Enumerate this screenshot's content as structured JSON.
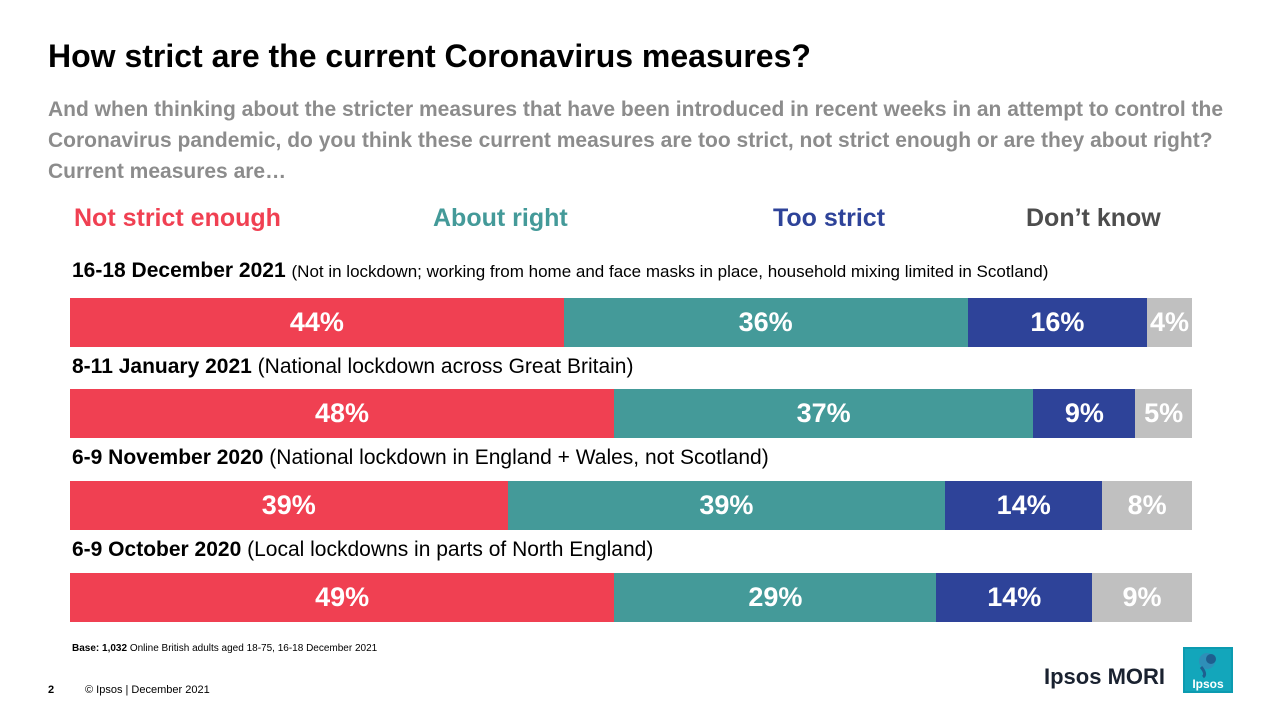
{
  "header": {
    "title": "How strict are the current Coronavirus measures?",
    "subtitle": "And when thinking about the stricter measures that have been introduced in recent weeks in an attempt to control the Coronavirus pandemic, do you think these current measures are too strict, not strict enough or are they about right? Current measures are…"
  },
  "colors": {
    "not_strict_enough": "#f04052",
    "about_right": "#449a99",
    "too_strict": "#2e4399",
    "dont_know": "#c0c0c0",
    "dont_know_legend": "#4d4d4d"
  },
  "chart_data": {
    "type": "bar",
    "orientation": "horizontal-stacked-100",
    "legend": [
      "Not strict enough",
      "About right",
      "Too strict",
      "Don’t know"
    ],
    "legend_placement": "top",
    "rows": [
      {
        "date": "16-18 December 2021",
        "note": "(Not in lockdown; working from home and face masks in place, household mixing limited in Scotland)",
        "values": [
          44,
          36,
          16,
          4
        ],
        "labels": [
          "44%",
          "36%",
          "16%",
          "4%"
        ]
      },
      {
        "date": "8-11 January 2021",
        "note": "(National lockdown across Great Britain)",
        "values": [
          48,
          37,
          9,
          5
        ],
        "labels": [
          "48%",
          "37%",
          "9%",
          "5%"
        ]
      },
      {
        "date": "6-9 November 2020",
        "note": "(National lockdown in England + Wales, not Scotland)",
        "values": [
          39,
          39,
          14,
          8
        ],
        "labels": [
          "39%",
          "39%",
          "14%",
          "8%"
        ]
      },
      {
        "date": "6-9 October 2020",
        "note": "(Local lockdowns in parts of North England)",
        "values": [
          49,
          29,
          14,
          9
        ],
        "labels": [
          "49%",
          "29%",
          "14%",
          "9%"
        ]
      }
    ]
  },
  "base": {
    "label": "Base:",
    "count": "1,032",
    "text": "Online British adults aged 18-75, 16-18 December 2021"
  },
  "footer": {
    "page_number": "2",
    "copyright": "© Ipsos | December 2021",
    "brand": "Ipsos MORI",
    "logo_text": "Ipsos"
  }
}
